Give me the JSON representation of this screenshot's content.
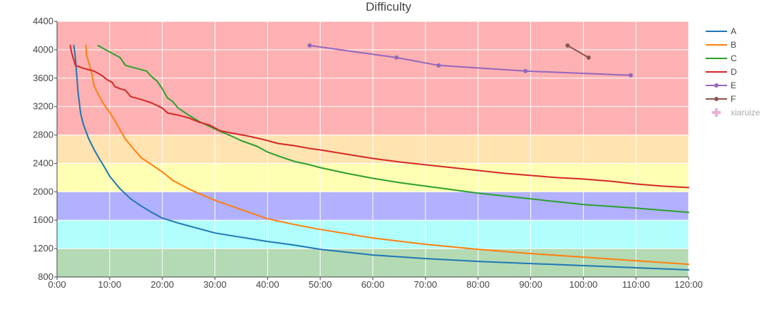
{
  "chart_data": {
    "type": "line",
    "title": "Difficulty",
    "xlabel": "",
    "ylabel": "",
    "xlim": [
      0,
      120
    ],
    "ylim": [
      800,
      4400
    ],
    "x_ticks": [
      {
        "value": 0,
        "label": "0:00"
      },
      {
        "value": 10,
        "label": "10:00"
      },
      {
        "value": 20,
        "label": "20:00"
      },
      {
        "value": 30,
        "label": "30:00"
      },
      {
        "value": 40,
        "label": "40:00"
      },
      {
        "value": 50,
        "label": "50:00"
      },
      {
        "value": 60,
        "label": "60:00"
      },
      {
        "value": 70,
        "label": "70:00"
      },
      {
        "value": 80,
        "label": "80:00"
      },
      {
        "value": 90,
        "label": "90:00"
      },
      {
        "value": 100,
        "label": "100:00"
      },
      {
        "value": 110,
        "label": "110:00"
      },
      {
        "value": 120,
        "label": "120:00"
      }
    ],
    "y_ticks": [
      {
        "value": 800,
        "label": "800"
      },
      {
        "value": 1200,
        "label": "1200"
      },
      {
        "value": 1600,
        "label": "1600"
      },
      {
        "value": 2000,
        "label": "2000"
      },
      {
        "value": 2400,
        "label": "2400"
      },
      {
        "value": 2800,
        "label": "2800"
      },
      {
        "value": 3200,
        "label": "3200"
      },
      {
        "value": 3600,
        "label": "3600"
      },
      {
        "value": 4000,
        "label": "4000"
      },
      {
        "value": 4400,
        "label": "4400"
      }
    ],
    "bands": [
      {
        "from": 800,
        "to": 1200,
        "color": "#b4dab4"
      },
      {
        "from": 1200,
        "to": 1600,
        "color": "#b1feff"
      },
      {
        "from": 1600,
        "to": 2000,
        "color": "#b1b1fe"
      },
      {
        "from": 2000,
        "to": 2400,
        "color": "#feffb3"
      },
      {
        "from": 2400,
        "to": 2800,
        "color": "#ffe3b1"
      },
      {
        "from": 2800,
        "to": 4400,
        "color": "#feb1b2"
      }
    ],
    "grid": true,
    "legend_position": "right",
    "series": [
      {
        "name": "A",
        "color": "#1f77b4",
        "markers": false,
        "x": [
          3.2,
          3.5,
          4.0,
          4.5,
          5.0,
          5.5,
          6.0,
          7.0,
          8.0,
          9.0,
          10.0,
          11.0,
          12.0,
          13.0,
          14.0,
          16.0,
          18.0,
          20.0,
          23.0,
          26.0,
          30.0,
          35.0,
          40.0,
          45.0,
          50.0,
          60.0,
          70.0,
          80.0,
          90.0,
          100.0,
          110.0,
          120.0
        ],
        "y": [
          4060,
          3880,
          3400,
          3100,
          2950,
          2850,
          2750,
          2600,
          2470,
          2350,
          2220,
          2130,
          2040,
          1970,
          1900,
          1800,
          1710,
          1630,
          1560,
          1500,
          1420,
          1360,
          1300,
          1250,
          1190,
          1110,
          1060,
          1020,
          990,
          960,
          930,
          900
        ]
      },
      {
        "name": "B",
        "color": "#ff7f0e",
        "markers": false,
        "x": [
          5.5,
          5.6,
          5.8,
          6.5,
          7.0,
          7.5,
          8.0,
          9.0,
          10.0,
          11.0,
          12.0,
          13.0,
          14.0,
          16.0,
          18.0,
          20.0,
          22.0,
          25.0,
          30.0,
          35.0,
          40.0,
          45.0,
          50.0,
          60.0,
          70.0,
          80.0,
          90.0,
          100.0,
          110.0,
          120.0
        ],
        "y": [
          4060,
          3920,
          3880,
          3700,
          3500,
          3420,
          3350,
          3220,
          3120,
          3000,
          2870,
          2740,
          2650,
          2480,
          2380,
          2280,
          2160,
          2040,
          1880,
          1750,
          1620,
          1540,
          1470,
          1350,
          1260,
          1190,
          1130,
          1080,
          1030,
          980
        ]
      },
      {
        "name": "C",
        "color": "#2ca02c",
        "markers": false,
        "x": [
          7.8,
          9.0,
          10.5,
          12.0,
          13.0,
          15.0,
          17.0,
          18.0,
          19.0,
          20.0,
          21.0,
          22.0,
          23.0,
          25.0,
          27.0,
          29.0,
          31.0,
          33.0,
          35.0,
          38.0,
          40.0,
          43.0,
          45.0,
          48.0,
          50.0,
          55.0,
          60.0,
          65.0,
          70.0,
          75.0,
          80.0,
          85.0,
          90.0,
          95.0,
          100.0,
          110.0,
          120.0
        ],
        "y": [
          4060,
          4010,
          3950,
          3890,
          3780,
          3740,
          3700,
          3620,
          3560,
          3450,
          3320,
          3270,
          3180,
          3080,
          2990,
          2920,
          2850,
          2790,
          2720,
          2640,
          2560,
          2480,
          2430,
          2380,
          2340,
          2260,
          2190,
          2130,
          2080,
          2030,
          1980,
          1940,
          1900,
          1860,
          1820,
          1770,
          1710
        ]
      },
      {
        "name": "D",
        "color": "#d62728",
        "markers": false,
        "x": [
          2.5,
          2.8,
          3.5,
          5.0,
          7.0,
          8.5,
          9.5,
          10.5,
          11.0,
          12.0,
          13.0,
          14.0,
          16.0,
          18.0,
          20.0,
          21.0,
          23.0,
          25.0,
          27.0,
          29.0,
          30.0,
          31.0,
          33.0,
          36.0,
          39.0,
          42.0,
          45.0,
          48.0,
          50.0,
          55.0,
          60.0,
          65.0,
          70.0,
          75.0,
          80.0,
          85.0,
          90.0,
          95.0,
          100.0,
          105.0,
          110.0,
          115.0,
          120.0
        ],
        "y": [
          4060,
          3950,
          3780,
          3740,
          3700,
          3640,
          3580,
          3540,
          3480,
          3450,
          3430,
          3340,
          3300,
          3250,
          3180,
          3110,
          3080,
          3040,
          2980,
          2940,
          2900,
          2860,
          2830,
          2790,
          2740,
          2680,
          2650,
          2610,
          2590,
          2530,
          2470,
          2420,
          2380,
          2340,
          2300,
          2260,
          2230,
          2200,
          2180,
          2150,
          2110,
          2080,
          2060
        ]
      },
      {
        "name": "E",
        "color": "#9467bd",
        "markers": true,
        "x": [
          48.0,
          64.5,
          72.5,
          89.0,
          109.0
        ],
        "y": [
          4060,
          3890,
          3780,
          3700,
          3640
        ]
      },
      {
        "name": "F",
        "color": "#8c564b",
        "markers": true,
        "x": [
          97.0,
          101.0
        ],
        "y": [
          4060,
          3890
        ]
      },
      {
        "name": "xiaruize",
        "color": "#e377c2",
        "markers": true,
        "marker_symbol": "cross",
        "dimmed": true,
        "x": [],
        "y": []
      }
    ]
  }
}
